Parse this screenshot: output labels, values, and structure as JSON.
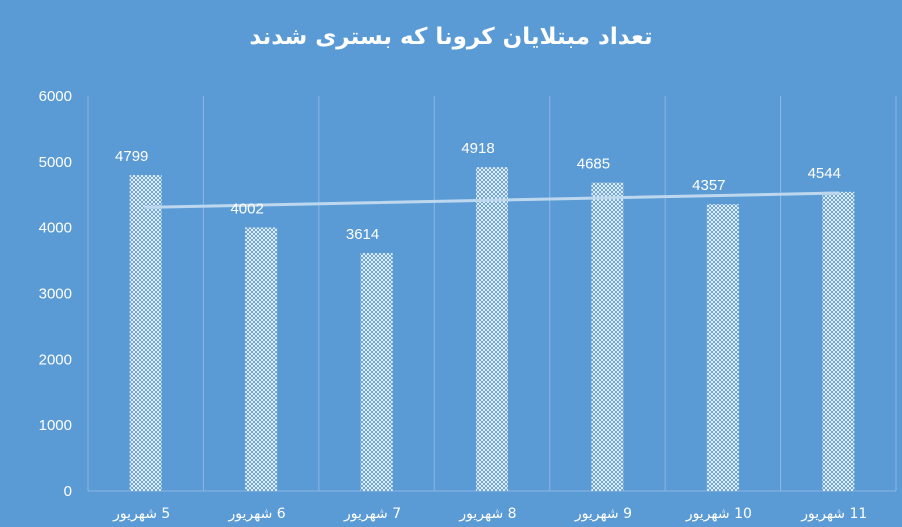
{
  "chart_data": {
    "type": "bar",
    "title": "تعداد مبتلایان کرونا که بستری شدند",
    "categories": [
      "5 شهریور",
      "6 شهریور",
      "7 شهریور",
      "8 شهریور",
      "9 شهریور",
      "10 شهریور",
      "11 شهریور"
    ],
    "values": [
      4799,
      4002,
      3614,
      4918,
      4685,
      4357,
      4544
    ],
    "data_labels": [
      "4799",
      "4002",
      "3614",
      "4918",
      "4685",
      "4357",
      "4544"
    ],
    "ylim": [
      0,
      6000
    ],
    "yticks": [
      0,
      1000,
      2000,
      3000,
      4000,
      5000,
      6000
    ],
    "ytick_labels": [
      "0",
      "1000",
      "2000",
      "3000",
      "4000",
      "5000",
      "6000"
    ],
    "grid": "vertical",
    "trendline": "linear",
    "legend": "none",
    "colors": {
      "background": "#5B9BD5",
      "bar_fill": "#ffffff",
      "bar_pattern": "#5B9BD5",
      "trendline": "#BDD7EE",
      "grid": "#8DB6E3",
      "text": "#ffffff"
    }
  }
}
